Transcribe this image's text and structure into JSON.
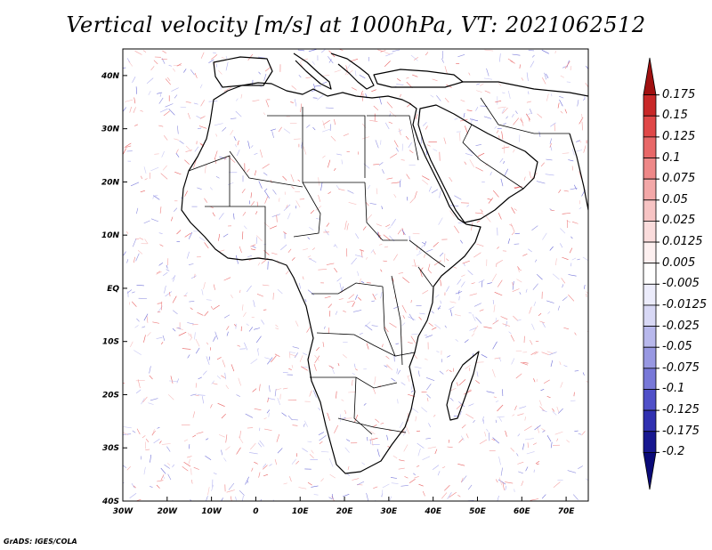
{
  "title": "Vertical velocity [m/s] at 1000hPa, VT: 2021062512",
  "map": {
    "region": "Africa",
    "lon_range": [
      -30,
      75
    ],
    "lat_range": [
      -40,
      45
    ],
    "x_ticks": [
      "30W",
      "20W",
      "10W",
      "0",
      "10E",
      "20E",
      "30E",
      "40E",
      "50E",
      "60E",
      "70E"
    ],
    "y_ticks": [
      "40N",
      "30N",
      "20N",
      "10N",
      "EQ",
      "10S",
      "20S",
      "30S",
      "40S"
    ]
  },
  "colorbar": {
    "levels": [
      "0.175",
      "0.15",
      "0.125",
      "0.1",
      "0.075",
      "0.05",
      "0.025",
      "0.0125",
      "0.005",
      "-0.005",
      "-0.0125",
      "-0.025",
      "-0.05",
      "-0.075",
      "-0.1",
      "-0.125",
      "-0.175",
      "-0.2"
    ],
    "colors": [
      "#a01010",
      "#c82828",
      "#e04848",
      "#e86868",
      "#ee8888",
      "#f3a8a8",
      "#f7c4c4",
      "#fadcdc",
      "#fdf0f0",
      "#ffffff",
      "#ececfb",
      "#d8d8f5",
      "#b8b8ec",
      "#9898e2",
      "#7878d8",
      "#5050c8",
      "#3030b0",
      "#181890",
      "#0a0a78"
    ]
  },
  "footer": "GrADS: IGES/COLA"
}
